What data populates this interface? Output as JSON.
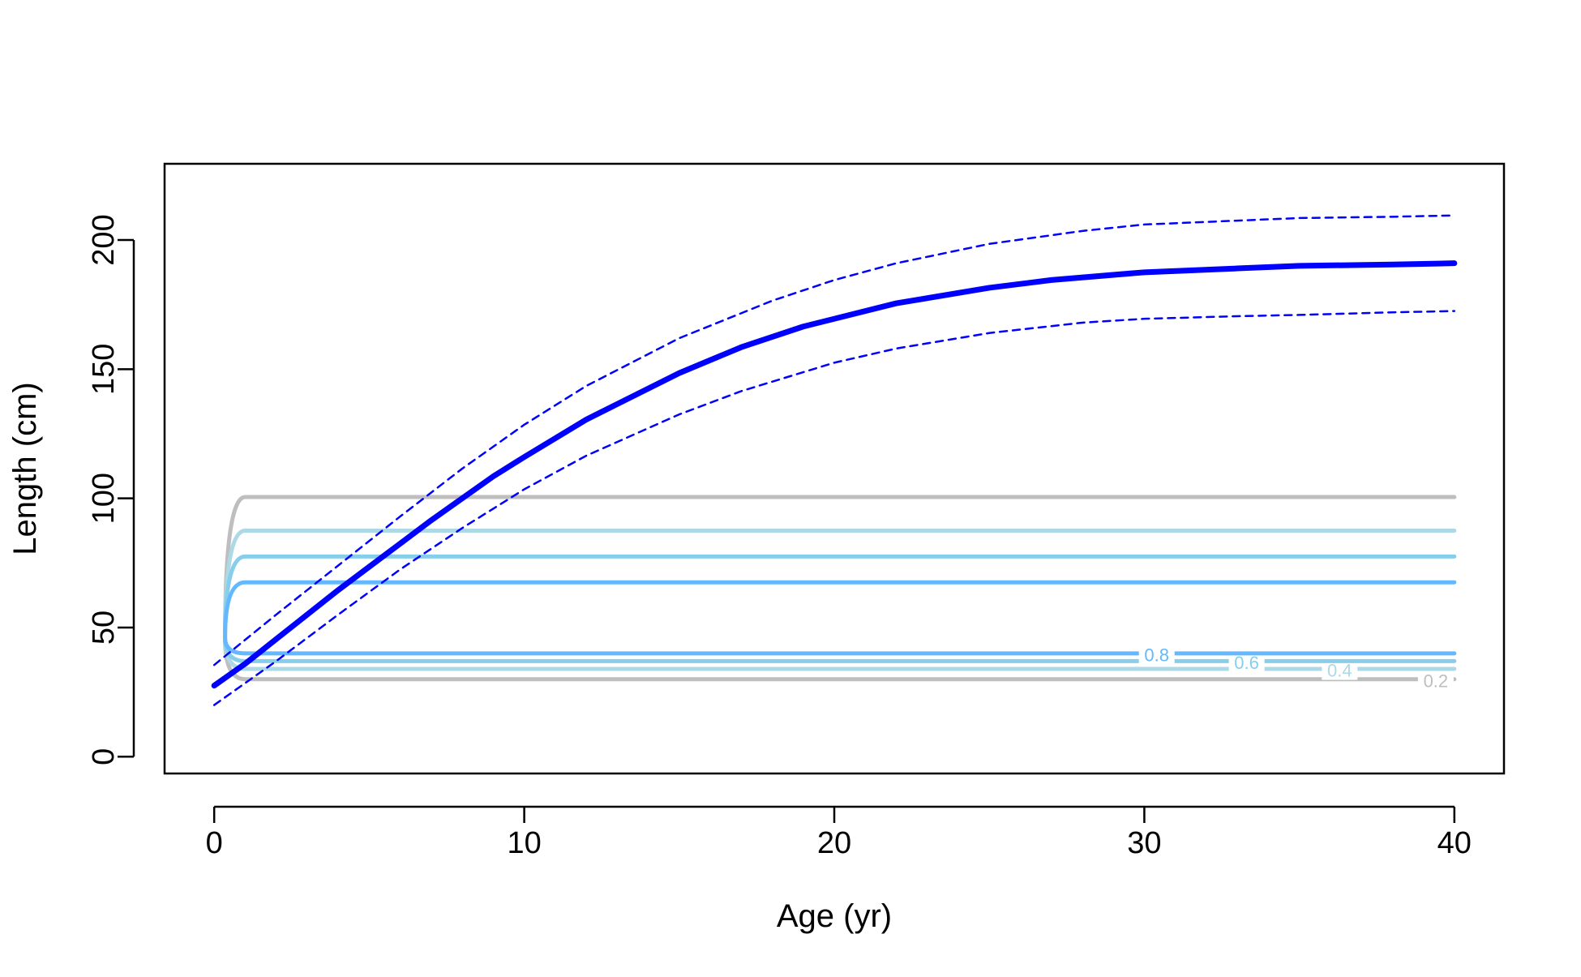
{
  "chart_data": {
    "type": "line",
    "title": "",
    "xlabel": "Age (yr)",
    "ylabel": "Length (cm)",
    "xlim": [
      -1.6,
      41.6
    ],
    "ylim": [
      -6.5,
      229.5
    ],
    "xticks": [
      0,
      10,
      20,
      30,
      40
    ],
    "yticks": [
      0,
      50,
      100,
      150,
      200
    ],
    "xtick_labels": [
      "0",
      "10",
      "20",
      "30",
      "40"
    ],
    "ytick_labels": [
      "0",
      "50",
      "100",
      "150",
      "200"
    ],
    "grid": false,
    "legend": "none",
    "series": [
      {
        "style": "solid-thick",
        "color": "#0000ff",
        "x": [
          0,
          1,
          2,
          3,
          4,
          5,
          6,
          7,
          8,
          9,
          10,
          12,
          15,
          17,
          19,
          22,
          25,
          27,
          30,
          33,
          35,
          38,
          40
        ],
        "y": [
          27.5,
          36,
          45.5,
          55,
          64.5,
          73.5,
          82.5,
          91.5,
          100,
          108.5,
          116,
          130.5,
          148.5,
          158.5,
          166.5,
          175.5,
          181.5,
          184.5,
          187.5,
          189,
          190,
          190.5,
          191
        ]
      },
      {
        "style": "dashed",
        "color": "#0000ff",
        "x": [
          0,
          2,
          4,
          6,
          8,
          10,
          12,
          15,
          18,
          20,
          22,
          25,
          28,
          30,
          33,
          35,
          38,
          40
        ],
        "y": [
          35.5,
          55,
          74,
          93,
          111.5,
          128.5,
          143.5,
          162,
          176.5,
          184.5,
          191,
          198.5,
          203.5,
          206,
          207.5,
          208.5,
          209,
          209.5
        ]
      },
      {
        "style": "dashed",
        "color": "#0000ff",
        "x": [
          0,
          2,
          4,
          6,
          8,
          10,
          12,
          15,
          17,
          20,
          22,
          25,
          28,
          30,
          33,
          35,
          38,
          40
        ],
        "y": [
          20,
          37,
          55,
          72.5,
          88.5,
          103.5,
          116.5,
          132.5,
          141.5,
          152.5,
          158,
          164,
          168,
          169.5,
          170.5,
          171,
          172,
          172.5
        ]
      }
    ],
    "contours": [
      {
        "level": "0.2",
        "color": "#bebebe",
        "upper_y": 100.5,
        "lower_y": 30,
        "x_start": 1,
        "x_end": 40,
        "label_x": 39.4,
        "label_y": 29.5
      },
      {
        "level": "0.4",
        "color": "#add8e6",
        "upper_y": 87.5,
        "lower_y": 34,
        "x_start": 1,
        "x_end": 40,
        "label_x": 36.3,
        "label_y": 33.5
      },
      {
        "level": "0.6",
        "color": "#87ceeb",
        "upper_y": 77.5,
        "lower_y": 37,
        "x_start": 1,
        "x_end": 40,
        "label_x": 33.3,
        "label_y": 36.5
      },
      {
        "level": "0.8",
        "color": "#63b8ff",
        "upper_y": 67.5,
        "lower_y": 40,
        "x_start": 1,
        "x_end": 40,
        "label_x": 30.4,
        "label_y": 39.5
      }
    ]
  }
}
